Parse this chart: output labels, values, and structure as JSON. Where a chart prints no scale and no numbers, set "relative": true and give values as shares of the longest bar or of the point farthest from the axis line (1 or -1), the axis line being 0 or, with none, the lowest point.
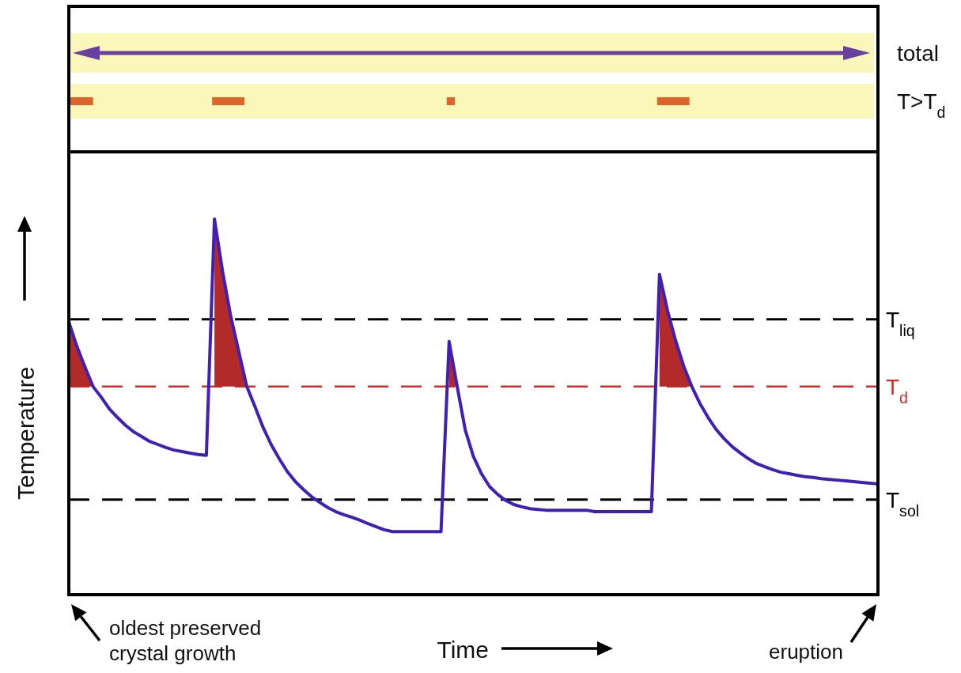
{
  "chart_data": [
    {
      "type": "other",
      "annotations": [
        "total",
        "T>T$_{d}$"
      ]
    },
    {
      "type": "line",
      "relative": true,
      "xlabel": "Time",
      "ylabel": "Temperature",
      "categories": [
        null,
        null,
        null,
        null,
        null,
        null,
        null,
        null,
        null,
        null,
        null,
        null,
        null,
        null,
        null,
        null,
        null,
        null,
        null,
        null,
        null,
        null,
        null,
        null,
        null,
        null,
        null,
        null,
        null,
        null,
        null,
        null,
        null,
        null,
        null,
        null,
        null,
        null,
        null,
        null,
        null,
        null,
        null,
        null,
        null,
        null,
        null,
        null,
        null,
        null,
        null,
        null,
        null,
        null,
        null,
        null,
        null,
        null,
        null,
        null,
        null,
        null,
        null,
        null,
        null,
        null,
        null,
        null,
        null,
        null,
        null,
        null,
        null,
        null,
        null,
        null,
        null,
        null,
        null,
        null,
        null,
        null,
        null,
        null,
        null,
        null,
        null,
        null,
        null,
        null,
        null,
        null,
        null,
        null,
        null,
        null,
        null,
        null,
        null,
        null,
        null
      ],
      "series": [
        {
          "type": "area",
          "color": "#b22a2a",
          "values": [
            0.726,
            0.661,
            0.606,
            0.554,
            null,
            null,
            null,
            null,
            null,
            null,
            null,
            null,
            null,
            null,
            null,
            null,
            null,
            null,
            1,
            0.861,
            0.743,
            0.648,
            0.554,
            null,
            null,
            null,
            null,
            null,
            null,
            null,
            null,
            null,
            null,
            null,
            null,
            null,
            null,
            null,
            null,
            null,
            null,
            null,
            null,
            null,
            null,
            null,
            null,
            0.674,
            0.554,
            null,
            null,
            null,
            null,
            null,
            null,
            null,
            null,
            null,
            null,
            null,
            null,
            null,
            null,
            null,
            null,
            null,
            null,
            null,
            null,
            null,
            null,
            null,
            null,
            0.853,
            0.756,
            0.676,
            0.608,
            0.554,
            null,
            null,
            null,
            null,
            null,
            null,
            null,
            null,
            null,
            null,
            null,
            null,
            null,
            null,
            null,
            null,
            null,
            null,
            null,
            null,
            null,
            null,
            null
          ]
        },
        {
          "type": "line",
          "color": "#3f1fb5",
          "values": [
            0.726,
            0.661,
            0.606,
            0.554,
            0.526,
            0.495,
            0.472,
            0.451,
            0.434,
            0.421,
            0.408,
            0.4,
            0.392,
            0.385,
            0.381,
            0.377,
            0.373,
            0.371,
            1,
            0.861,
            0.743,
            0.648,
            0.554,
            0.501,
            0.446,
            0.4,
            0.362,
            0.328,
            0.301,
            0.28,
            0.261,
            0.246,
            0.232,
            0.221,
            0.213,
            0.206,
            0.198,
            0.189,
            0.181,
            0.173,
            0.168,
            0.168,
            0.168,
            0.168,
            0.168,
            0.168,
            0.168,
            0.674,
            0.554,
            0.438,
            0.368,
            0.322,
            0.288,
            0.267,
            0.251,
            0.24,
            0.234,
            0.229,
            0.227,
            0.225,
            0.225,
            0.225,
            0.225,
            0.225,
            0.225,
            0.221,
            0.221,
            0.221,
            0.221,
            0.221,
            0.221,
            0.221,
            0.221,
            0.853,
            0.756,
            0.676,
            0.608,
            0.554,
            0.509,
            0.472,
            0.44,
            0.415,
            0.394,
            0.377,
            0.362,
            0.349,
            0.341,
            0.333,
            0.326,
            0.322,
            0.318,
            0.314,
            0.312,
            0.309,
            0.307,
            0.305,
            0.303,
            0.301,
            0.299,
            0.297,
            0.295
          ]
        }
      ],
      "ref_lines": [
        {
          "axis": "y",
          "value": 0.733,
          "label": "T$_{liq}$",
          "color": "#000000",
          "line_style": "dashed"
        },
        {
          "axis": "y",
          "value": 0.554,
          "label": "T$_{d}$",
          "color": "#d42a2a",
          "line_style": "dashed"
        },
        {
          "axis": "y",
          "value": 0.253,
          "label": "T$_{sol}$",
          "color": "#000000",
          "line_style": "dashed"
        }
      ],
      "annotations": [
        "oldest preserved crystal growth",
        "eruption"
      ]
    }
  ]
}
